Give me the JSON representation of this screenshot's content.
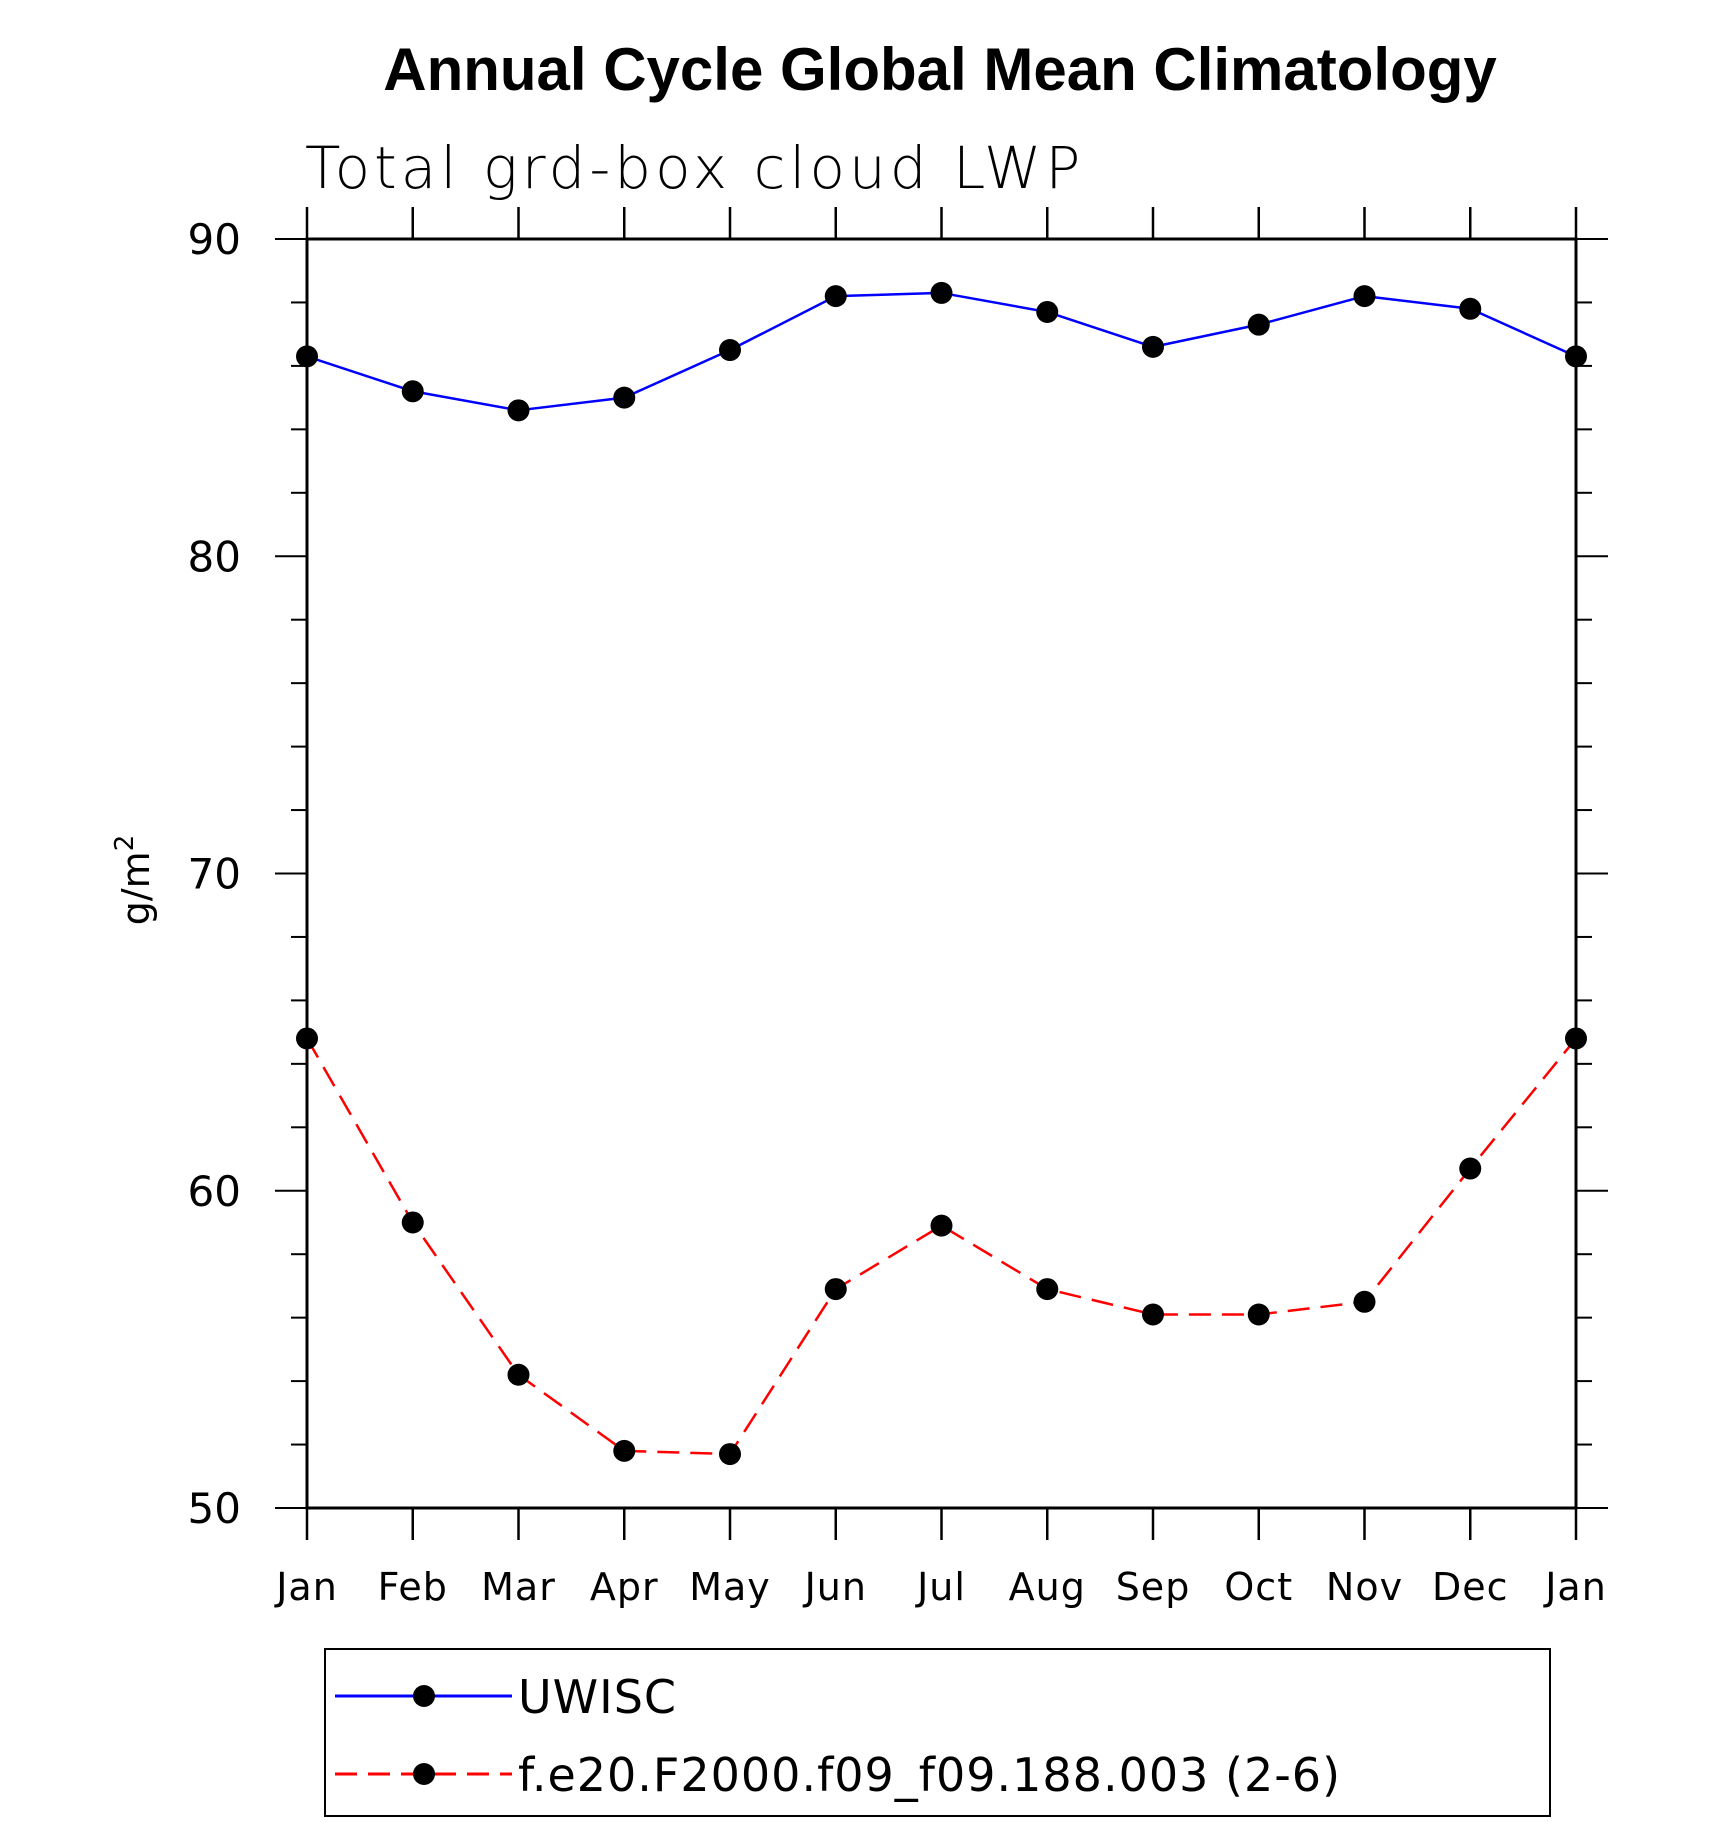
{
  "chart_data": {
    "type": "line",
    "title": "Annual Cycle Global Mean Climatology",
    "subtitle": "Total grd-box cloud LWP",
    "xlabel": "",
    "ylabel": "g/m",
    "ylabel_superscript": "2",
    "categories": [
      "Jan",
      "Feb",
      "Mar",
      "Apr",
      "May",
      "Jun",
      "Jul",
      "Aug",
      "Sep",
      "Oct",
      "Nov",
      "Dec",
      "Jan"
    ],
    "ylim": [
      50,
      90
    ],
    "yticks": [
      50,
      60,
      70,
      80,
      90
    ],
    "y_minor_step": 2,
    "series": [
      {
        "name": "UWISC",
        "color": "#0000ff",
        "dash": "solid",
        "marker": "filled-circle",
        "values": [
          86.3,
          85.2,
          84.6,
          85.0,
          86.5,
          88.2,
          88.3,
          87.7,
          86.6,
          87.3,
          88.2,
          87.8,
          86.3
        ]
      },
      {
        "name": "f.e20.F2000.f09_f09.188.003 (2-6)",
        "color": "#ff0000",
        "dash": "dashed",
        "marker": "filled-circle",
        "values": [
          64.8,
          59.0,
          54.2,
          51.8,
          51.7,
          56.9,
          58.9,
          56.9,
          56.1,
          56.1,
          56.5,
          60.7,
          64.8
        ]
      }
    ],
    "legend_position": "bottom",
    "grid": false
  },
  "colors": {
    "axis": "#000000",
    "marker": "#000000",
    "background": "#ffffff"
  }
}
